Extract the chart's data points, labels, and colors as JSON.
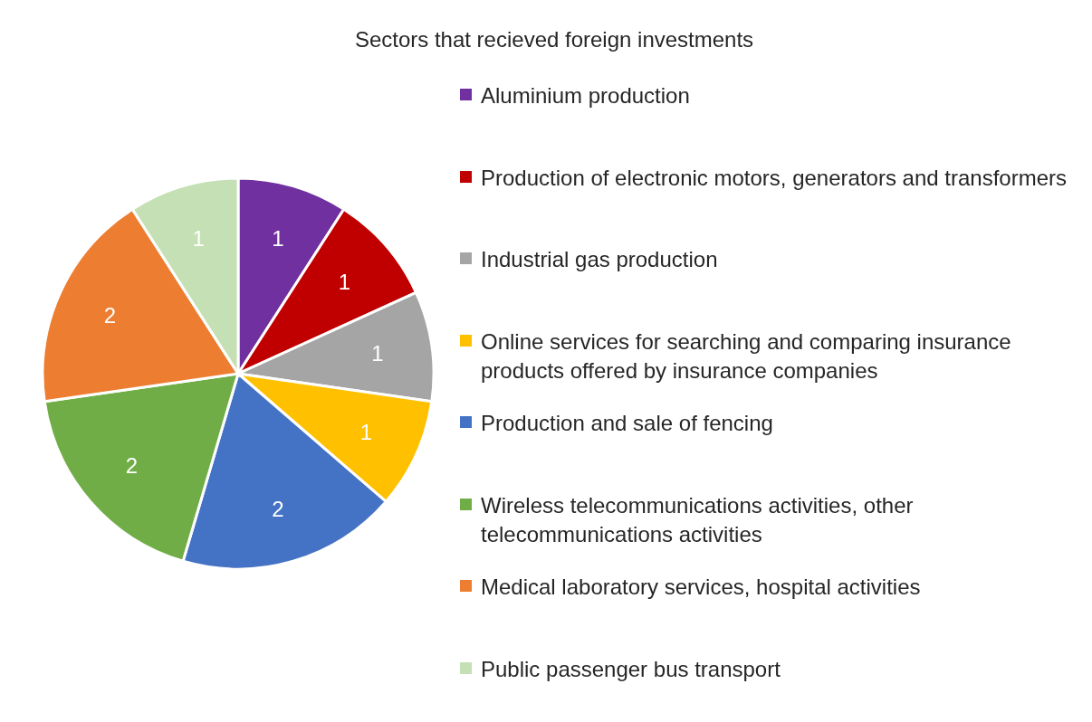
{
  "chart_data": {
    "type": "pie",
    "title": "Sectors that recieved foreign investments",
    "categories": [
      "Aluminium production",
      "Production of electronic motors, generators and transformers",
      "Industrial gas production",
      "Online services for searching and comparing insurance products offered by insurance companies",
      "Production and sale of fencing",
      "Wireless telecommunications activities, other telecommunications activities",
      "Medical laboratory services, hospital activities",
      "Public passenger bus transport"
    ],
    "values": [
      1,
      1,
      1,
      1,
      2,
      2,
      2,
      1
    ],
    "colors": [
      "#7030a0",
      "#c00000",
      "#a5a5a5",
      "#ffc000",
      "#4472c4",
      "#70ad47",
      "#ed7d31",
      "#c5e0b4"
    ],
    "data_labels": true,
    "legend": "right"
  }
}
